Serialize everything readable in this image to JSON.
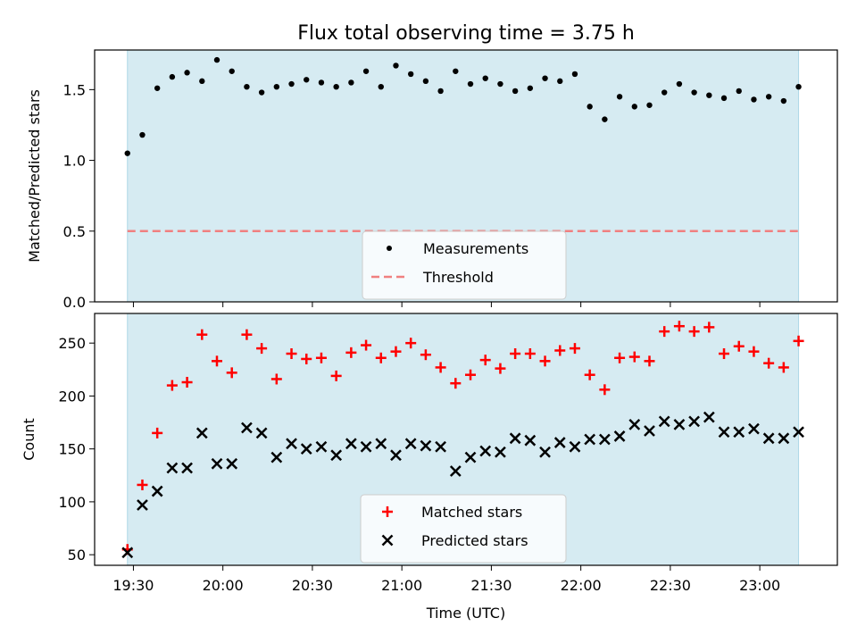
{
  "figure": {
    "title": "Flux total observing time = 3.75 h"
  },
  "chart_data": [
    {
      "type": "scatter",
      "panel": "top",
      "title": "Flux total observing time = 3.75 h",
      "xlabel": "",
      "ylabel": "Matched/Predicted stars",
      "ylim": [
        0,
        1.78
      ],
      "yticks": [
        "0.0",
        "0.5",
        "1.0",
        "1.5"
      ],
      "ytick_values": [
        0,
        0.5,
        1.0,
        1.5
      ],
      "x_unit": "time of day (UTC)",
      "x": [
        "19:28",
        "19:33",
        "19:38",
        "19:43",
        "19:48",
        "19:53",
        "19:58",
        "20:03",
        "20:08",
        "20:13",
        "20:18",
        "20:23",
        "20:28",
        "20:33",
        "20:38",
        "20:43",
        "20:48",
        "20:53",
        "20:58",
        "21:03",
        "21:08",
        "21:13",
        "21:18",
        "21:23",
        "21:28",
        "21:33",
        "21:38",
        "21:43",
        "21:48",
        "21:53",
        "21:58",
        "22:03",
        "22:08",
        "22:13",
        "22:18",
        "22:23",
        "22:28",
        "22:33",
        "22:38",
        "22:43",
        "22:48",
        "22:53",
        "22:58",
        "23:03",
        "23:08",
        "23:13"
      ],
      "series": [
        {
          "name": "Measurements",
          "marker": "dot",
          "color": "#000000",
          "values": [
            1.05,
            1.18,
            1.51,
            1.59,
            1.62,
            1.56,
            1.71,
            1.63,
            1.52,
            1.48,
            1.52,
            1.54,
            1.57,
            1.55,
            1.52,
            1.55,
            1.63,
            1.52,
            1.67,
            1.61,
            1.56,
            1.49,
            1.63,
            1.54,
            1.58,
            1.54,
            1.49,
            1.51,
            1.58,
            1.56,
            1.61,
            1.38,
            1.29,
            1.45,
            1.38,
            1.39,
            1.48,
            1.54,
            1.48,
            1.46,
            1.44,
            1.49,
            1.43,
            1.45,
            1.42,
            1.52
          ]
        },
        {
          "name": "Threshold",
          "marker": "dashed-line",
          "color": "#f08080",
          "values": [
            0.5
          ]
        }
      ],
      "shaded_span": {
        "from": "19:28",
        "to": "23:13",
        "color": "#add8e6"
      },
      "legend": "lower-center",
      "grid": false
    },
    {
      "type": "scatter",
      "panel": "bottom",
      "xlabel": "Time (UTC)",
      "ylabel": "Count",
      "ylim": [
        40,
        278
      ],
      "yticks": [
        "50",
        "100",
        "150",
        "200",
        "250"
      ],
      "ytick_values": [
        50,
        100,
        150,
        200,
        250
      ],
      "xlim": [
        "19:17",
        "23:26"
      ],
      "xticks": [
        "19:30",
        "20:00",
        "20:30",
        "21:00",
        "21:30",
        "22:00",
        "22:30",
        "23:00"
      ],
      "x_unit": "time of day (UTC)",
      "x": [
        "19:28",
        "19:33",
        "19:38",
        "19:43",
        "19:48",
        "19:53",
        "19:58",
        "20:03",
        "20:08",
        "20:13",
        "20:18",
        "20:23",
        "20:28",
        "20:33",
        "20:38",
        "20:43",
        "20:48",
        "20:53",
        "20:58",
        "21:03",
        "21:08",
        "21:13",
        "21:18",
        "21:23",
        "21:28",
        "21:33",
        "21:38",
        "21:43",
        "21:48",
        "21:53",
        "21:58",
        "22:03",
        "22:08",
        "22:13",
        "22:18",
        "22:23",
        "22:28",
        "22:33",
        "22:38",
        "22:43",
        "22:48",
        "22:53",
        "22:58",
        "23:03",
        "23:08",
        "23:13"
      ],
      "series": [
        {
          "name": "Matched stars",
          "marker": "plus",
          "color": "#ff0000",
          "values": [
            55,
            116,
            165,
            210,
            213,
            258,
            233,
            222,
            258,
            245,
            216,
            240,
            235,
            236,
            219,
            241,
            248,
            236,
            242,
            250,
            239,
            227,
            212,
            220,
            234,
            226,
            240,
            240,
            233,
            243,
            245,
            220,
            206,
            236,
            237,
            233,
            261,
            266,
            261,
            265,
            240,
            247,
            242,
            231,
            227,
            252
          ]
        },
        {
          "name": "Predicted stars",
          "marker": "x",
          "color": "#000000",
          "values": [
            52,
            97,
            110,
            132,
            132,
            165,
            136,
            136,
            170,
            165,
            142,
            155,
            150,
            152,
            144,
            155,
            152,
            155,
            144,
            155,
            153,
            152,
            129,
            142,
            148,
            147,
            160,
            158,
            147,
            156,
            152,
            159,
            159,
            162,
            173,
            167,
            176,
            173,
            176,
            180,
            166,
            166,
            169,
            160,
            160,
            166
          ]
        }
      ],
      "shaded_span": {
        "from": "19:28",
        "to": "23:13",
        "color": "#add8e6"
      },
      "legend": "lower-center",
      "grid": false
    }
  ]
}
